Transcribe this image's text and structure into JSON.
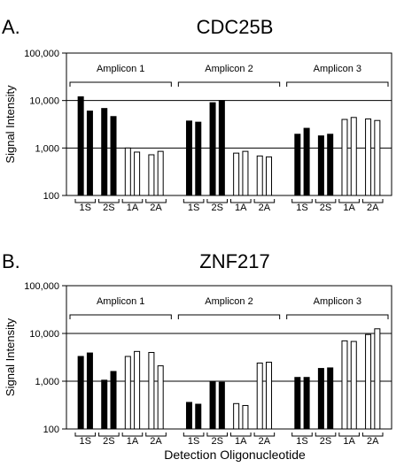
{
  "figure": {
    "xlabel": "Detection Oligonucleotide"
  },
  "chart_data": [
    {
      "type": "bar",
      "panel_label": "A.",
      "title": "CDC25B",
      "ylabel": "Signal Intensity",
      "yscale": "log",
      "ylim": [
        100,
        100000
      ],
      "yticks": [
        "100",
        "1,000",
        "10,000",
        "100,000"
      ],
      "gridlines": [
        1000,
        10000
      ],
      "group_labels": [
        "1S",
        "2S",
        "1A",
        "2A"
      ],
      "amplicons": [
        "Amplicon 1",
        "Amplicon 2",
        "Amplicon 3"
      ],
      "series": [
        {
          "fill": "#000000",
          "type": "sense"
        },
        {
          "fill": "#ffffff",
          "type": "antisense"
        }
      ],
      "values": [
        [
          12000,
          6000,
          6800,
          4600,
          1000,
          820,
          720,
          850
        ],
        [
          3700,
          3500,
          9000,
          10000,
          780,
          850,
          680,
          650
        ],
        [
          1950,
          2600,
          1800,
          1950,
          4000,
          4400,
          4100,
          3800
        ]
      ]
    },
    {
      "type": "bar",
      "panel_label": "B.",
      "title": "ZNF217",
      "ylabel": "Signal Intensity",
      "yscale": "log",
      "ylim": [
        100,
        100000
      ],
      "yticks": [
        "100",
        "1,000",
        "10,000",
        "100,000"
      ],
      "gridlines": [
        1000,
        10000
      ],
      "group_labels": [
        "1S",
        "2S",
        "1A",
        "2A"
      ],
      "amplicons": [
        "Amplicon 1",
        "Amplicon 2",
        "Amplicon 3"
      ],
      "series": [
        {
          "fill": "#000000",
          "type": "sense"
        },
        {
          "fill": "#ffffff",
          "type": "antisense"
        }
      ],
      "values": [
        [
          3300,
          3900,
          1050,
          1600,
          3300,
          4200,
          4000,
          2100
        ],
        [
          360,
          330,
          1000,
          950,
          340,
          310,
          2400,
          2500
        ],
        [
          1200,
          1200,
          1850,
          1900,
          7000,
          6800,
          9500,
          12500
        ]
      ]
    }
  ]
}
